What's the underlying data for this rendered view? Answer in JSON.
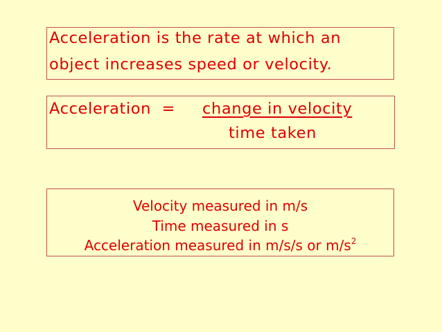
{
  "definition": {
    "line1": "Acceleration is the rate at which an",
    "line2": "object increases speed or velocity."
  },
  "equation": {
    "lhs": "Acceleration  =",
    "numerator": "change in velocity",
    "denominator": "time taken"
  },
  "units": {
    "line1": "Velocity measured in m/s",
    "line2": "Time measured in s",
    "line3": "Acceleration measured in m/s/s or m/s",
    "line3_superscript": "2"
  },
  "colors": {
    "background": "#ffffcc",
    "text": "#dd0000",
    "border": "#c0504d"
  }
}
